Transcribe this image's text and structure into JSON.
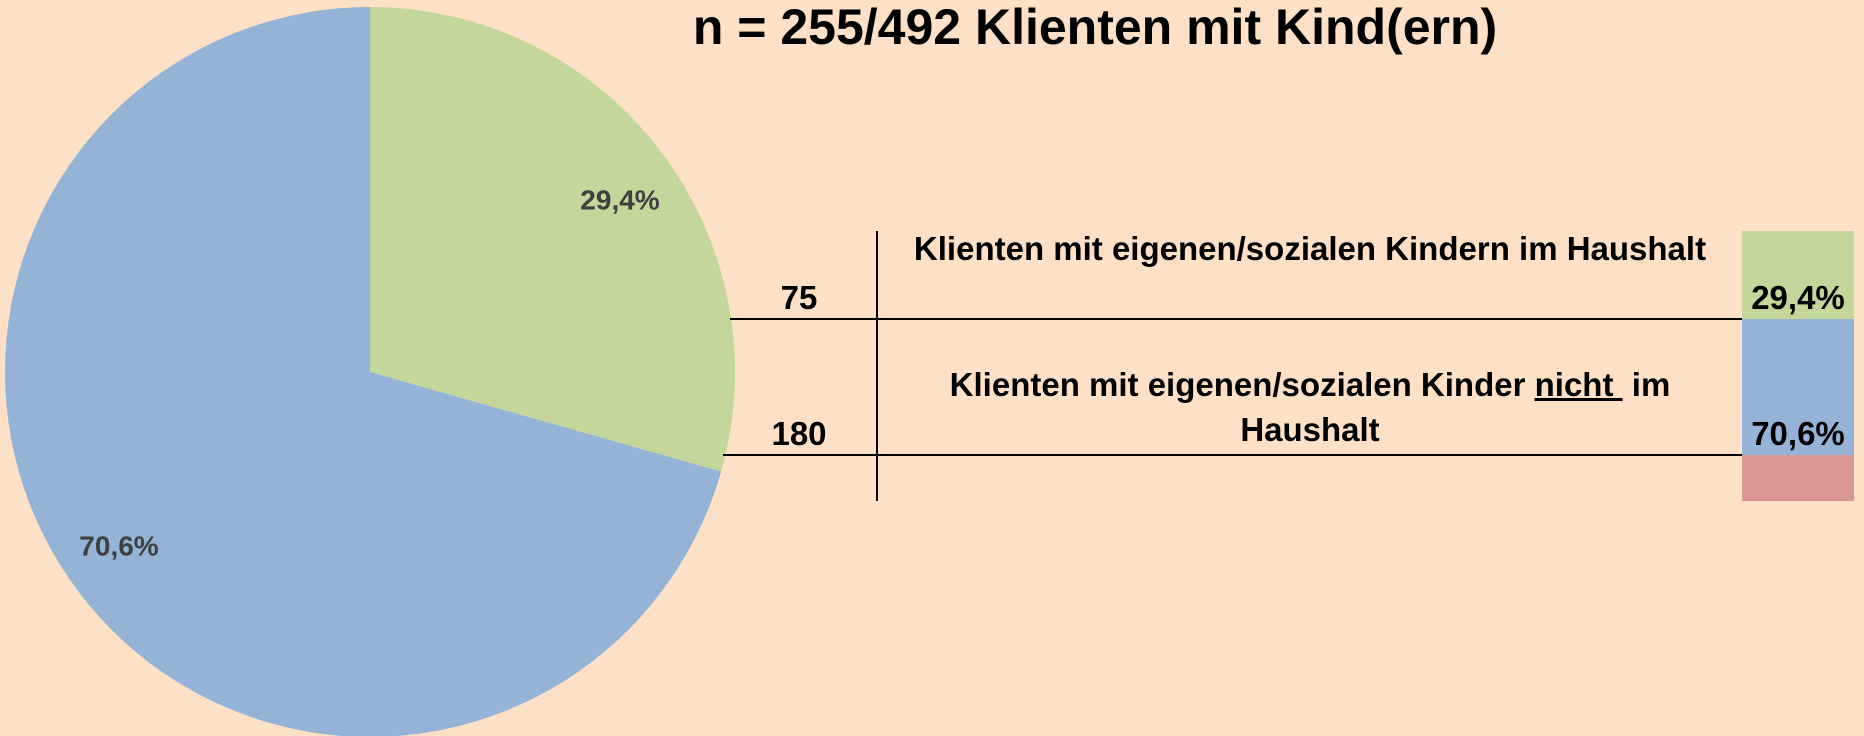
{
  "chart_data": {
    "type": "pie",
    "title": "n = 255/492 Klienten mit Kind(ern)",
    "categories": [
      null,
      null
    ],
    "values": [
      29.4,
      70.6
    ],
    "value_labels": [
      "29,4%",
      "70,6%"
    ],
    "colors": [
      "#c4d79b",
      "#95b3d7"
    ],
    "start_angle": 0,
    "direction": "clockwise"
  },
  "table": {
    "rows": [
      {
        "count": 75,
        "label": [
          "Klienten mit eigenen/sozialen Kindern im Haushalt"
        ]
      },
      {
        "count": 180,
        "label": [
          "Klienten mit eigenen/sozialen Kinder ",
          "nicht ",
          " im Haushalt"
        ]
      }
    ],
    "footer_color": "#da9694"
  }
}
